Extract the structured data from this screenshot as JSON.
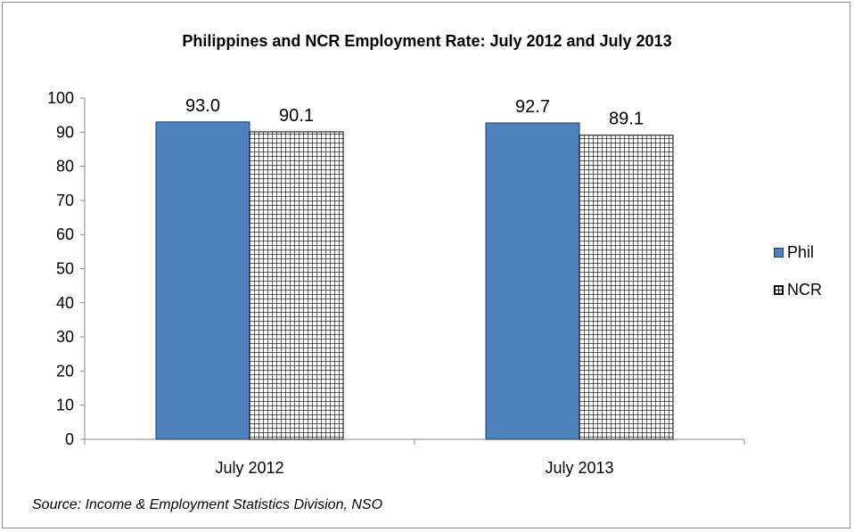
{
  "chart_data": {
    "type": "bar",
    "title": "Philippines and NCR Employment Rate: July 2012 and July 2013",
    "categories": [
      "July 2012",
      "July 2013"
    ],
    "series": [
      {
        "name": "Phil",
        "values": [
          93.0,
          92.7
        ],
        "color": "#4f81bd",
        "labels": [
          "93.0",
          "92.7"
        ]
      },
      {
        "name": "NCR",
        "values": [
          90.1,
          89.1
        ],
        "color": "#ffffff",
        "labels": [
          "90.1",
          "89.1"
        ]
      }
    ],
    "xlabel": "",
    "ylabel": "",
    "ylim": [
      0,
      100
    ],
    "yticks": [
      "0",
      "10",
      "20",
      "30",
      "40",
      "50",
      "60",
      "70",
      "80",
      "90",
      "100"
    ],
    "legend": "right",
    "grid": false
  },
  "source": "Source: Income & Employment Statistics Division, NSO"
}
